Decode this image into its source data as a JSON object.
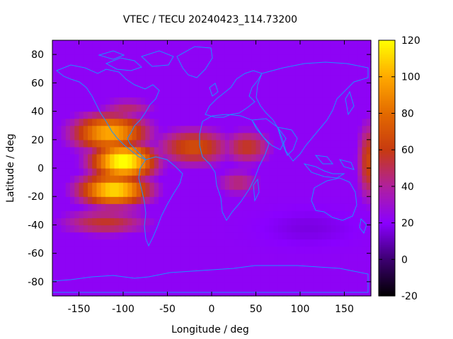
{
  "chart_data": {
    "type": "heatmap",
    "title": "VTEC / TECU 20240423_114.73200",
    "xlabel": "Longitude / deg",
    "ylabel": "Latitude / deg",
    "xlim": [
      -180,
      180
    ],
    "ylim": [
      -90,
      90
    ],
    "x_ticks": [
      -150,
      -100,
      -50,
      0,
      50,
      100,
      150
    ],
    "y_ticks": [
      -80,
      -60,
      -40,
      -20,
      0,
      20,
      40,
      60,
      80
    ],
    "colorbar": {
      "range": [
        -20,
        120
      ],
      "ticks": [
        -20,
        0,
        20,
        40,
        60,
        80,
        100,
        120
      ],
      "palette_stops": [
        {
          "value": -20,
          "color": "#000000"
        },
        {
          "value": 0,
          "color": "#3c0070"
        },
        {
          "value": 20,
          "color": "#8a00ff"
        },
        {
          "value": 40,
          "color": "#b0209e"
        },
        {
          "value": 60,
          "color": "#c73a10"
        },
        {
          "value": 80,
          "color": "#e36a00"
        },
        {
          "value": 100,
          "color": "#ffa800"
        },
        {
          "value": 120,
          "color": "#ffff00"
        }
      ]
    },
    "background_level": 22,
    "features": [
      {
        "name": "main-anomaly-crest",
        "lon": -100,
        "lat": 5,
        "peak": 118,
        "sigma_lon": 38,
        "sigma_lat": 14
      },
      {
        "name": "main-anomaly-south",
        "lon": -110,
        "lat": -15,
        "peak": 108,
        "sigma_lon": 42,
        "sigma_lat": 12
      },
      {
        "name": "main-anomaly-north",
        "lon": -115,
        "lat": 25,
        "peak": 95,
        "sigma_lon": 45,
        "sigma_lat": 14
      },
      {
        "name": "atlantic-tongue",
        "lon": -20,
        "lat": 15,
        "peak": 62,
        "sigma_lon": 45,
        "sigma_lat": 14
      },
      {
        "name": "africa-north",
        "lon": 40,
        "lat": 15,
        "peak": 52,
        "sigma_lon": 30,
        "sigma_lat": 13
      },
      {
        "name": "africa-south",
        "lon": 30,
        "lat": -10,
        "peak": 40,
        "sigma_lon": 28,
        "sigma_lat": 10
      },
      {
        "name": "southern-band",
        "lon": -120,
        "lat": -38,
        "peak": 50,
        "sigma_lon": 55,
        "sigma_lat": 10
      },
      {
        "name": "east-edge",
        "lon": 178,
        "lat": 5,
        "peak": 58,
        "sigma_lon": 14,
        "sigma_lat": 30
      },
      {
        "name": "north-america",
        "lon": -95,
        "lat": 42,
        "peak": 40,
        "sigma_lon": 35,
        "sigma_lat": 8
      }
    ],
    "coastline_color": "#1e90ff"
  }
}
